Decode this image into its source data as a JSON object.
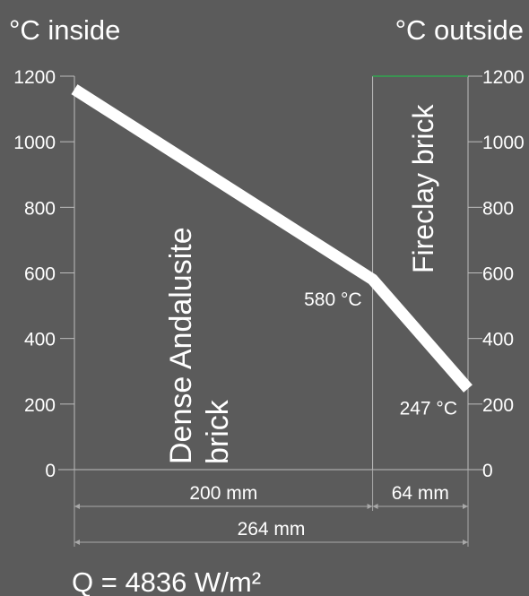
{
  "chart_data": {
    "type": "line",
    "title_left": "°C inside",
    "title_right": "°C outside",
    "ylim": [
      0,
      1200
    ],
    "yticks": [
      0,
      200,
      400,
      600,
      800,
      1000,
      1200
    ],
    "yticks_left": [
      "0",
      "200",
      "400",
      "600",
      "800",
      "1000",
      "1200"
    ],
    "yticks_right": [
      "0",
      "200",
      "400",
      "600",
      "800",
      "1000",
      "1200"
    ],
    "xlim_mm": [
      0,
      264
    ],
    "layers": [
      {
        "label_line1": "Dense Andalusite",
        "label_line2": "brick",
        "thickness_mm": 200,
        "thickness_label": "200 mm"
      },
      {
        "label_line1": "Fireclay brick",
        "label_line2": "",
        "thickness_mm": 64,
        "thickness_label": "64 mm"
      }
    ],
    "total_label": "264 mm",
    "profile": [
      {
        "x_mm": 0,
        "temp_c": 1160
      },
      {
        "x_mm": 200,
        "temp_c": 580
      },
      {
        "x_mm": 264,
        "temp_c": 247
      }
    ],
    "annotations": [
      {
        "text": "580 °C",
        "x_mm": 200,
        "temp_c": 580
      },
      {
        "text": "247 °C",
        "x_mm": 264,
        "temp_c": 247
      }
    ],
    "heat_flux": "Q = 4836 W/m²",
    "colors": {
      "background": "#5b5b5b",
      "line": "#ffffff",
      "axis": "#bdbdbd",
      "top_edge": "#2fa84f"
    }
  }
}
